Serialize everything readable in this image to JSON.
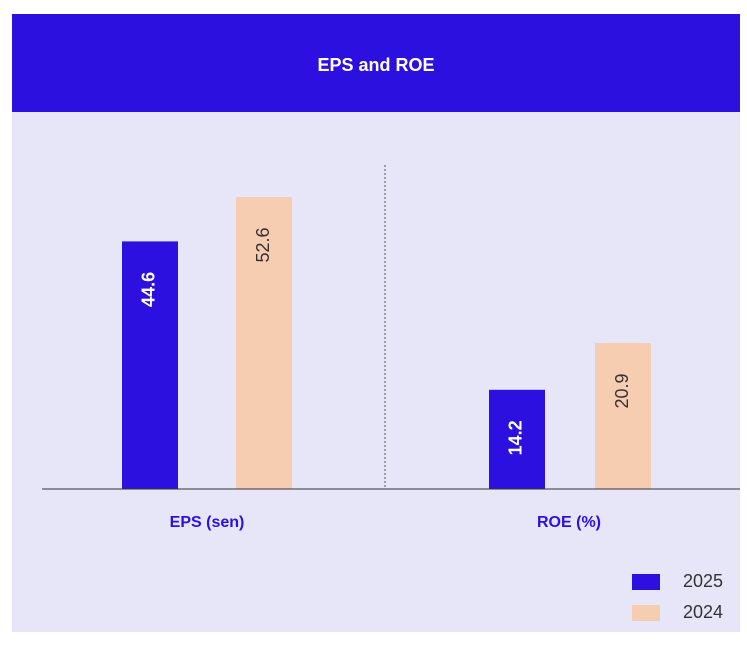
{
  "chart_data": {
    "type": "bar",
    "title": "EPS and ROE",
    "categories": [
      "EPS (sen)",
      "ROE (%)"
    ],
    "series": [
      {
        "name": "2025",
        "color": "#2b10e0",
        "values": [
          44.6,
          14.2
        ]
      },
      {
        "name": "2024",
        "color": "#f6cdb1",
        "values": [
          52.6,
          20.9
        ]
      }
    ]
  }
}
